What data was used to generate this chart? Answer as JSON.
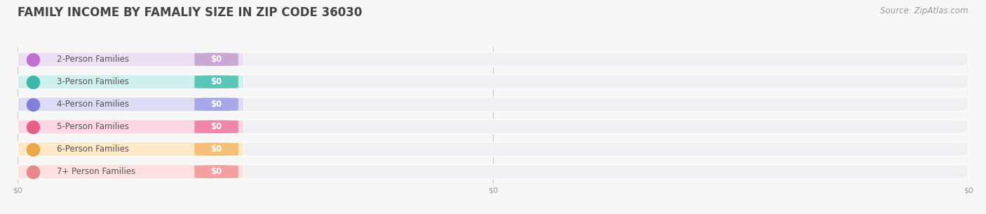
{
  "title": "FAMILY INCOME BY FAMALIY SIZE IN ZIP CODE 36030",
  "source_text": "Source: ZipAtlas.com",
  "categories": [
    "2-Person Families",
    "3-Person Families",
    "4-Person Families",
    "5-Person Families",
    "6-Person Families",
    "7+ Person Families"
  ],
  "values": [
    0,
    0,
    0,
    0,
    0,
    0
  ],
  "bar_colors": [
    "#c9a8d4",
    "#5dc4b8",
    "#a8a8e8",
    "#f086a8",
    "#f5c07a",
    "#f5a0a0"
  ],
  "bar_bg_colors": [
    "#ede0f5",
    "#d0f0ee",
    "#dcdcf5",
    "#fcd8e5",
    "#fde8c8",
    "#fde0e0"
  ],
  "dot_colors": [
    "#c070d0",
    "#3ab8aa",
    "#8080d8",
    "#e8608a",
    "#e8a848",
    "#e88888"
  ],
  "label_text_color": "#555555",
  "value_text_color": "#ffffff",
  "background_color": "#f7f7f7",
  "bar_bg_full_color": "#f0f0f2",
  "title_color": "#444444",
  "source_color": "#999999",
  "title_fontsize": 12,
  "label_fontsize": 8.5,
  "value_fontsize": 8.5,
  "source_fontsize": 8.5
}
